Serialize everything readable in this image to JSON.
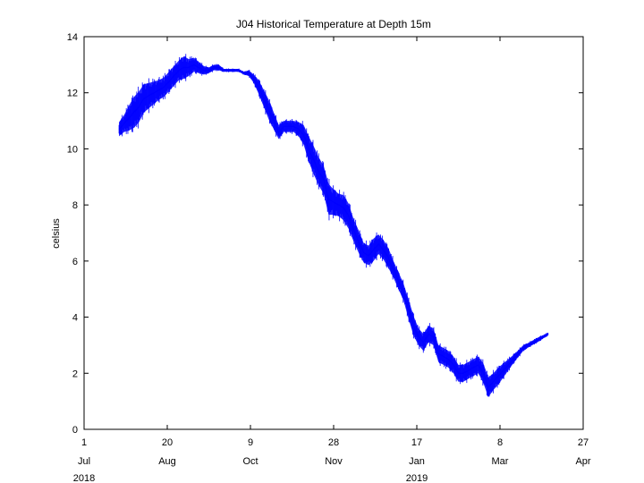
{
  "chart_data": {
    "type": "line",
    "title": "J04 Historical Temperature at Depth 15m",
    "xlabel": "",
    "ylabel": "celsius",
    "xlim": [
      "2018-07-01",
      "2019-04-27"
    ],
    "ylim": [
      0,
      14
    ],
    "grid": false,
    "line_color": "#0000ff",
    "y_ticks": [
      0,
      2,
      4,
      6,
      8,
      10,
      12,
      14
    ],
    "x_ticks": [
      {
        "date": "2018-07-01",
        "day": "1",
        "month": "Jul"
      },
      {
        "date": "2018-08-20",
        "day": "20",
        "month": "Aug"
      },
      {
        "date": "2018-10-09",
        "day": "9",
        "month": "Oct"
      },
      {
        "date": "2018-11-28",
        "day": "28",
        "month": "Nov"
      },
      {
        "date": "2019-01-17",
        "day": "17",
        "month": "Jan"
      },
      {
        "date": "2019-03-08",
        "day": "8",
        "month": "Mar"
      },
      {
        "date": "2019-04-27",
        "day": "27",
        "month": "Apr"
      }
    ],
    "year_labels": [
      {
        "date": "2018-07-01",
        "label": "2018"
      },
      {
        "date": "2019-01-17",
        "label": "2019"
      }
    ],
    "series": [
      {
        "x": [
          "2018-07-22",
          "2018-07-25",
          "2018-07-28",
          "2018-07-31",
          "2018-08-03",
          "2018-08-06",
          "2018-08-09",
          "2018-08-12",
          "2018-08-15",
          "2018-08-18",
          "2018-08-21",
          "2018-08-24",
          "2018-08-27",
          "2018-08-30",
          "2018-09-02",
          "2018-09-05",
          "2018-09-08",
          "2018-09-11",
          "2018-09-14",
          "2018-09-17",
          "2018-09-20",
          "2018-09-23",
          "2018-09-26",
          "2018-09-29",
          "2018-10-02",
          "2018-10-05",
          "2018-10-08",
          "2018-10-11",
          "2018-10-14",
          "2018-10-17",
          "2018-10-20",
          "2018-10-23",
          "2018-10-26",
          "2018-10-29",
          "2018-11-01",
          "2018-11-04",
          "2018-11-07",
          "2018-11-10",
          "2018-11-13",
          "2018-11-16",
          "2018-11-19",
          "2018-11-22",
          "2018-11-25",
          "2018-11-28",
          "2018-12-01",
          "2018-12-04",
          "2018-12-07",
          "2018-12-10",
          "2018-12-13",
          "2018-12-16",
          "2018-12-19",
          "2018-12-22",
          "2018-12-25",
          "2018-12-28",
          "2018-12-31",
          "2019-01-03",
          "2019-01-06",
          "2019-01-09",
          "2019-01-12",
          "2019-01-15",
          "2019-01-18",
          "2019-01-21",
          "2019-01-24",
          "2019-01-27",
          "2019-01-30",
          "2019-02-02",
          "2019-02-05",
          "2019-02-08",
          "2019-02-11",
          "2019-02-14",
          "2019-02-17",
          "2019-02-20",
          "2019-02-23",
          "2019-02-26",
          "2019-03-01",
          "2019-03-04",
          "2019-03-07",
          "2019-03-10",
          "2019-03-13",
          "2019-03-16",
          "2019-03-19",
          "2019-03-22",
          "2019-03-25",
          "2019-03-28",
          "2019-03-31",
          "2019-04-03",
          "2019-04-06"
        ],
        "y": [
          10.7,
          10.9,
          11.1,
          11.3,
          11.5,
          11.8,
          11.9,
          12.0,
          12.1,
          12.2,
          12.4,
          12.6,
          12.8,
          12.9,
          12.9,
          13.0,
          12.9,
          12.8,
          12.8,
          12.9,
          12.9,
          12.8,
          12.8,
          12.8,
          12.8,
          12.7,
          12.7,
          12.5,
          12.2,
          11.8,
          11.4,
          11.0,
          10.6,
          10.8,
          10.8,
          10.8,
          10.7,
          10.5,
          10.0,
          9.6,
          9.2,
          8.9,
          8.2,
          8.1,
          8.0,
          7.9,
          7.6,
          7.1,
          6.7,
          6.3,
          6.2,
          6.4,
          6.6,
          6.4,
          6.1,
          5.7,
          5.3,
          4.9,
          4.3,
          3.7,
          3.3,
          3.1,
          3.4,
          3.3,
          2.7,
          2.6,
          2.5,
          2.3,
          2.0,
          2.0,
          2.1,
          2.2,
          2.3,
          2.0,
          1.5,
          1.7,
          1.9,
          2.1,
          2.3,
          2.5,
          2.7,
          2.9,
          3.0,
          3.1,
          3.2,
          3.3,
          3.4
        ],
        "band": [
          0.25,
          0.3,
          0.45,
          0.55,
          0.55,
          0.5,
          0.45,
          0.4,
          0.35,
          0.35,
          0.35,
          0.35,
          0.35,
          0.4,
          0.3,
          0.25,
          0.2,
          0.15,
          0.1,
          0.1,
          0.1,
          0.05,
          0.05,
          0.05,
          0.05,
          0.05,
          0.1,
          0.15,
          0.25,
          0.3,
          0.35,
          0.3,
          0.25,
          0.2,
          0.2,
          0.2,
          0.25,
          0.35,
          0.45,
          0.5,
          0.5,
          0.5,
          0.55,
          0.45,
          0.4,
          0.45,
          0.45,
          0.4,
          0.4,
          0.35,
          0.35,
          0.4,
          0.35,
          0.35,
          0.35,
          0.3,
          0.3,
          0.3,
          0.35,
          0.35,
          0.3,
          0.3,
          0.3,
          0.3,
          0.3,
          0.3,
          0.3,
          0.3,
          0.3,
          0.3,
          0.3,
          0.3,
          0.3,
          0.35,
          0.35,
          0.3,
          0.3,
          0.25,
          0.2,
          0.15,
          0.12,
          0.1,
          0.08,
          0.08,
          0.08,
          0.06,
          0.05
        ]
      }
    ]
  }
}
